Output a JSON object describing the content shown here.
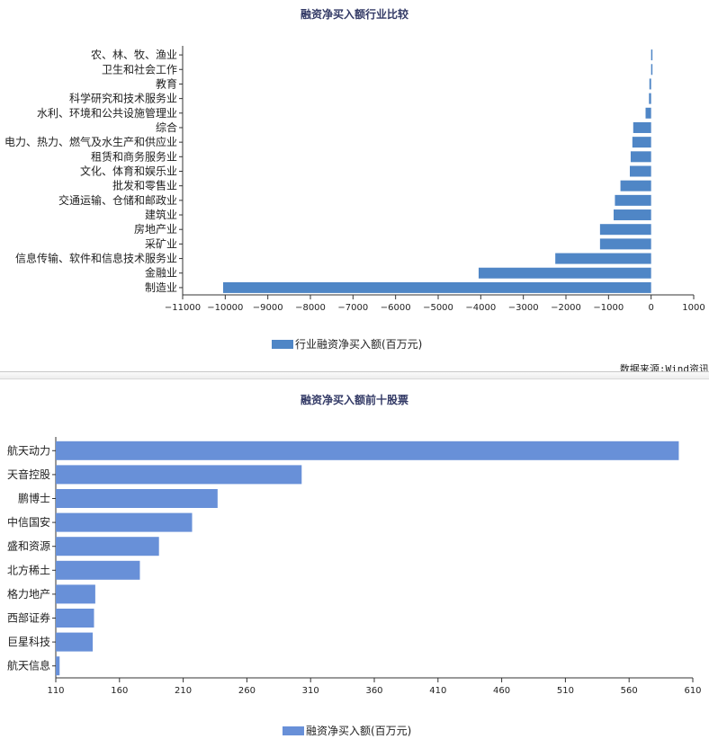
{
  "chart_data": [
    {
      "type": "bar",
      "orientation": "horizontal",
      "title": "融资净买入额行业比较",
      "categories": [
        "农、林、牧、渔业",
        "卫生和社会工作",
        "教育",
        "科学研究和技术服务业",
        "水利、环境和公共设施管理业",
        "综合",
        "电力、热力、燃气及水生产和供应业",
        "租赁和商务服务业",
        "文化、体育和娱乐业",
        "批发和零售业",
        "交通运输、仓储和邮政业",
        "建筑业",
        "房地产业",
        "采矿业",
        "信息传输、软件和信息技术服务业",
        "金融业",
        "制造业"
      ],
      "series": [
        {
          "name": "行业融资净买入额(百万元)",
          "values": [
            25,
            15,
            -40,
            -50,
            -130,
            -420,
            -440,
            -480,
            -500,
            -720,
            -850,
            -880,
            -1200,
            -1200,
            -2250,
            -4050,
            -10050
          ]
        }
      ],
      "xlim": [
        -11000,
        1000
      ],
      "xticks": [
        -11000,
        -10000,
        -9000,
        -8000,
        -7000,
        -6000,
        -5000,
        -4000,
        -3000,
        -2000,
        -1000,
        0,
        1000
      ],
      "legend_position": "bottom-left",
      "grid": false,
      "color": "#4f86c6"
    },
    {
      "type": "bar",
      "orientation": "horizontal",
      "title": "融资净买入额前十股票",
      "categories": [
        "航天动力",
        "天音控股",
        "鹏博士",
        "中信国安",
        "盛和资源",
        "北方稀土",
        "格力地产",
        "西部证券",
        "巨星科技",
        "航天信息"
      ],
      "series": [
        {
          "name": "融资净买入额(百万元)",
          "values": [
            599,
            303,
            237,
            217,
            191,
            176,
            141,
            140,
            139,
            113
          ]
        }
      ],
      "xlim": [
        110,
        610
      ],
      "xticks": [
        110,
        160,
        210,
        260,
        310,
        360,
        410,
        460,
        510,
        560,
        610
      ],
      "legend_position": "bottom-left",
      "grid": false,
      "color": "#6890d8"
    }
  ],
  "source_text": "数据来源:Wind资讯"
}
